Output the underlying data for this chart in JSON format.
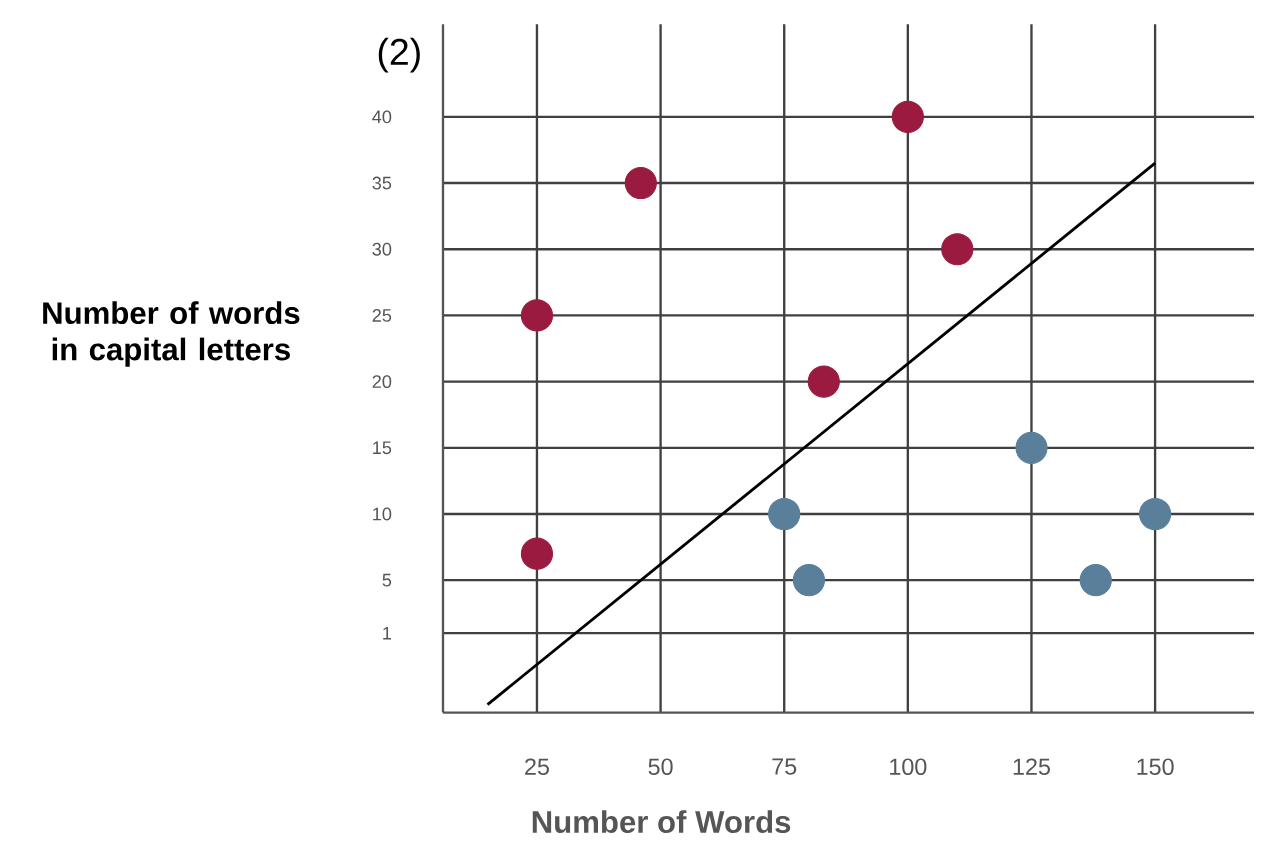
{
  "chart_data": {
    "type": "scatter",
    "title": "(2)",
    "xlabel": "Number of Words",
    "ylabel": "Number of words in capital letters",
    "xlim": [
      6,
      170
    ],
    "ylim": [
      -5,
      47
    ],
    "xticks": [
      25,
      50,
      75,
      100,
      125,
      150
    ],
    "yticks": [
      1,
      5,
      10,
      15,
      20,
      25,
      30,
      35,
      40
    ],
    "grid": true,
    "series": [
      {
        "color": "#9b1b40",
        "marker": "circle",
        "x": [
          25,
          25,
          46,
          83,
          100,
          110
        ],
        "values": [
          25,
          7,
          35,
          20,
          40,
          30
        ]
      },
      {
        "color": "#5a7f9a",
        "marker": "circle",
        "x": [
          75,
          80,
          125,
          138,
          150
        ],
        "values": [
          10,
          5,
          15,
          5,
          10
        ]
      },
      {
        "type": "line",
        "color": "#000000",
        "x": [
          15,
          150
        ],
        "values": [
          -4.4,
          36.5
        ]
      }
    ]
  }
}
